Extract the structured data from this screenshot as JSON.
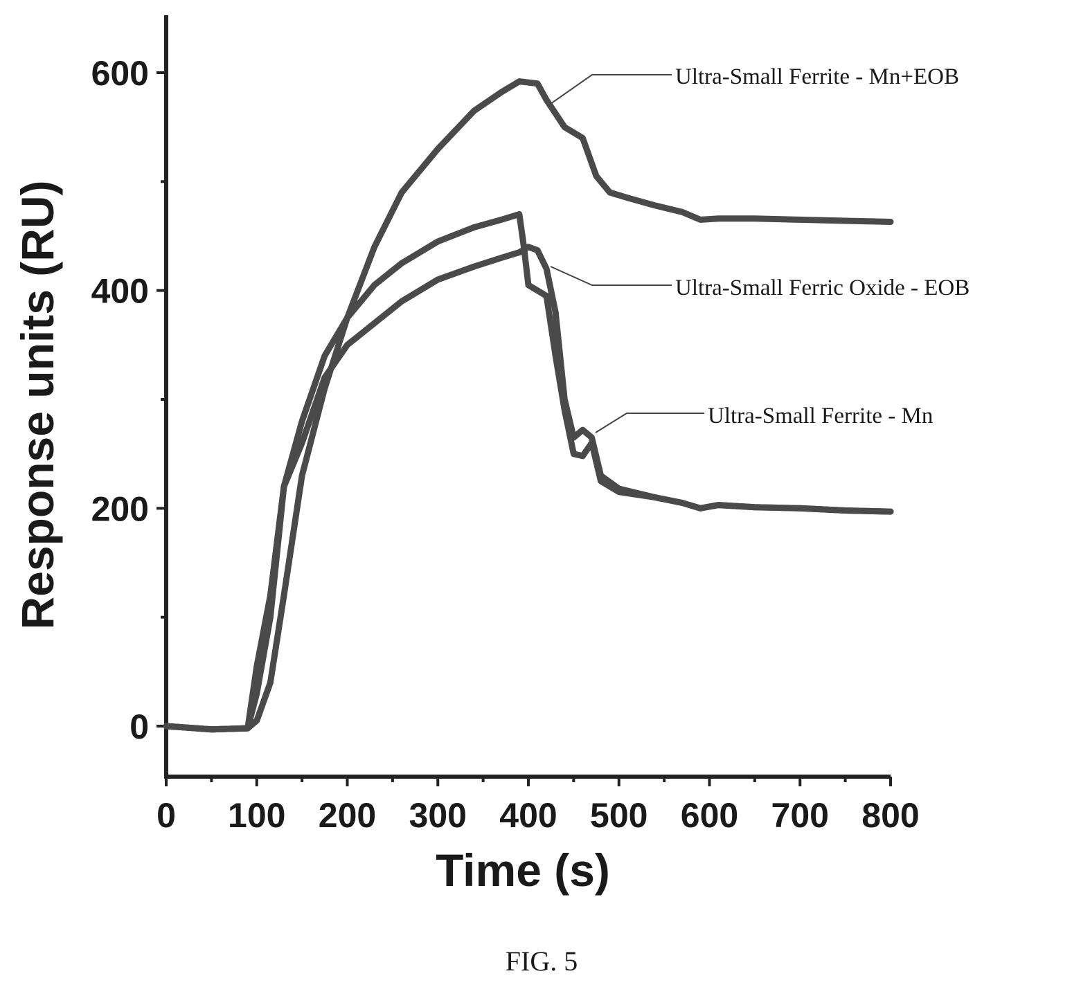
{
  "chart_data": {
    "type": "line",
    "title": "",
    "xlabel": "Time (s)",
    "ylabel": "Response units (RU)",
    "xlim": [
      0,
      800
    ],
    "ylim": [
      -50,
      650
    ],
    "xticks": [
      0,
      100,
      200,
      300,
      400,
      500,
      600,
      700,
      800
    ],
    "xtick_labels": [
      "0",
      "100",
      "200",
      "300",
      "400",
      "500",
      "600",
      "700",
      "800"
    ],
    "yticks": [
      0,
      200,
      400,
      600
    ],
    "ytick_labels": [
      "0",
      "200",
      "400",
      "600"
    ],
    "grid": false,
    "series": [
      {
        "name": "Ultra-Small Ferrite - Mn+EOB",
        "x": [
          0,
          50,
          90,
          100,
          115,
          130,
          150,
          175,
          200,
          230,
          260,
          300,
          340,
          370,
          390,
          410,
          420,
          440,
          460,
          475,
          490,
          510,
          540,
          570,
          590,
          610,
          650,
          700,
          750,
          800
        ],
        "y": [
          0,
          -3,
          -2,
          5,
          40,
          120,
          230,
          310,
          375,
          440,
          490,
          530,
          565,
          582,
          592,
          590,
          575,
          550,
          540,
          505,
          490,
          485,
          478,
          472,
          465,
          466,
          466,
          465,
          464,
          463
        ]
      },
      {
        "name": "Ultra-Small Ferric Oxide - EOB",
        "x": [
          0,
          50,
          90,
          100,
          115,
          130,
          150,
          175,
          200,
          230,
          260,
          300,
          340,
          370,
          390,
          395,
          400,
          420,
          430,
          440,
          450,
          460,
          470,
          480,
          500,
          540,
          570,
          590,
          610,
          650,
          700,
          750,
          800
        ],
        "y": [
          0,
          -3,
          -2,
          55,
          120,
          220,
          280,
          340,
          375,
          405,
          425,
          445,
          458,
          465,
          470,
          440,
          405,
          395,
          340,
          290,
          250,
          248,
          260,
          225,
          215,
          210,
          205,
          200,
          203,
          201,
          200,
          198,
          197
        ]
      },
      {
        "name": "Ultra-Small Ferrite - Mn",
        "x": [
          0,
          50,
          90,
          100,
          115,
          130,
          150,
          175,
          200,
          230,
          260,
          300,
          340,
          370,
          390,
          400,
          410,
          420,
          430,
          440,
          450,
          460,
          470,
          480,
          500,
          540,
          570,
          590,
          610,
          650,
          700,
          750,
          800
        ],
        "y": [
          0,
          -3,
          -2,
          30,
          100,
          220,
          260,
          320,
          350,
          370,
          390,
          410,
          422,
          430,
          435,
          440,
          437,
          420,
          380,
          300,
          265,
          272,
          265,
          230,
          218,
          210,
          205,
          200,
          203,
          201,
          200,
          198,
          197
        ]
      }
    ],
    "annotations": [
      {
        "text": "Ultra-Small Ferrite - Mn+EOB",
        "points_to_series": 0
      },
      {
        "text": "Ultra-Small Ferric Oxide - EOB",
        "points_to_series": 1
      },
      {
        "text": "Ultra-Small Ferrite - Mn",
        "points_to_series": 2
      }
    ]
  },
  "caption": "FIG. 5"
}
